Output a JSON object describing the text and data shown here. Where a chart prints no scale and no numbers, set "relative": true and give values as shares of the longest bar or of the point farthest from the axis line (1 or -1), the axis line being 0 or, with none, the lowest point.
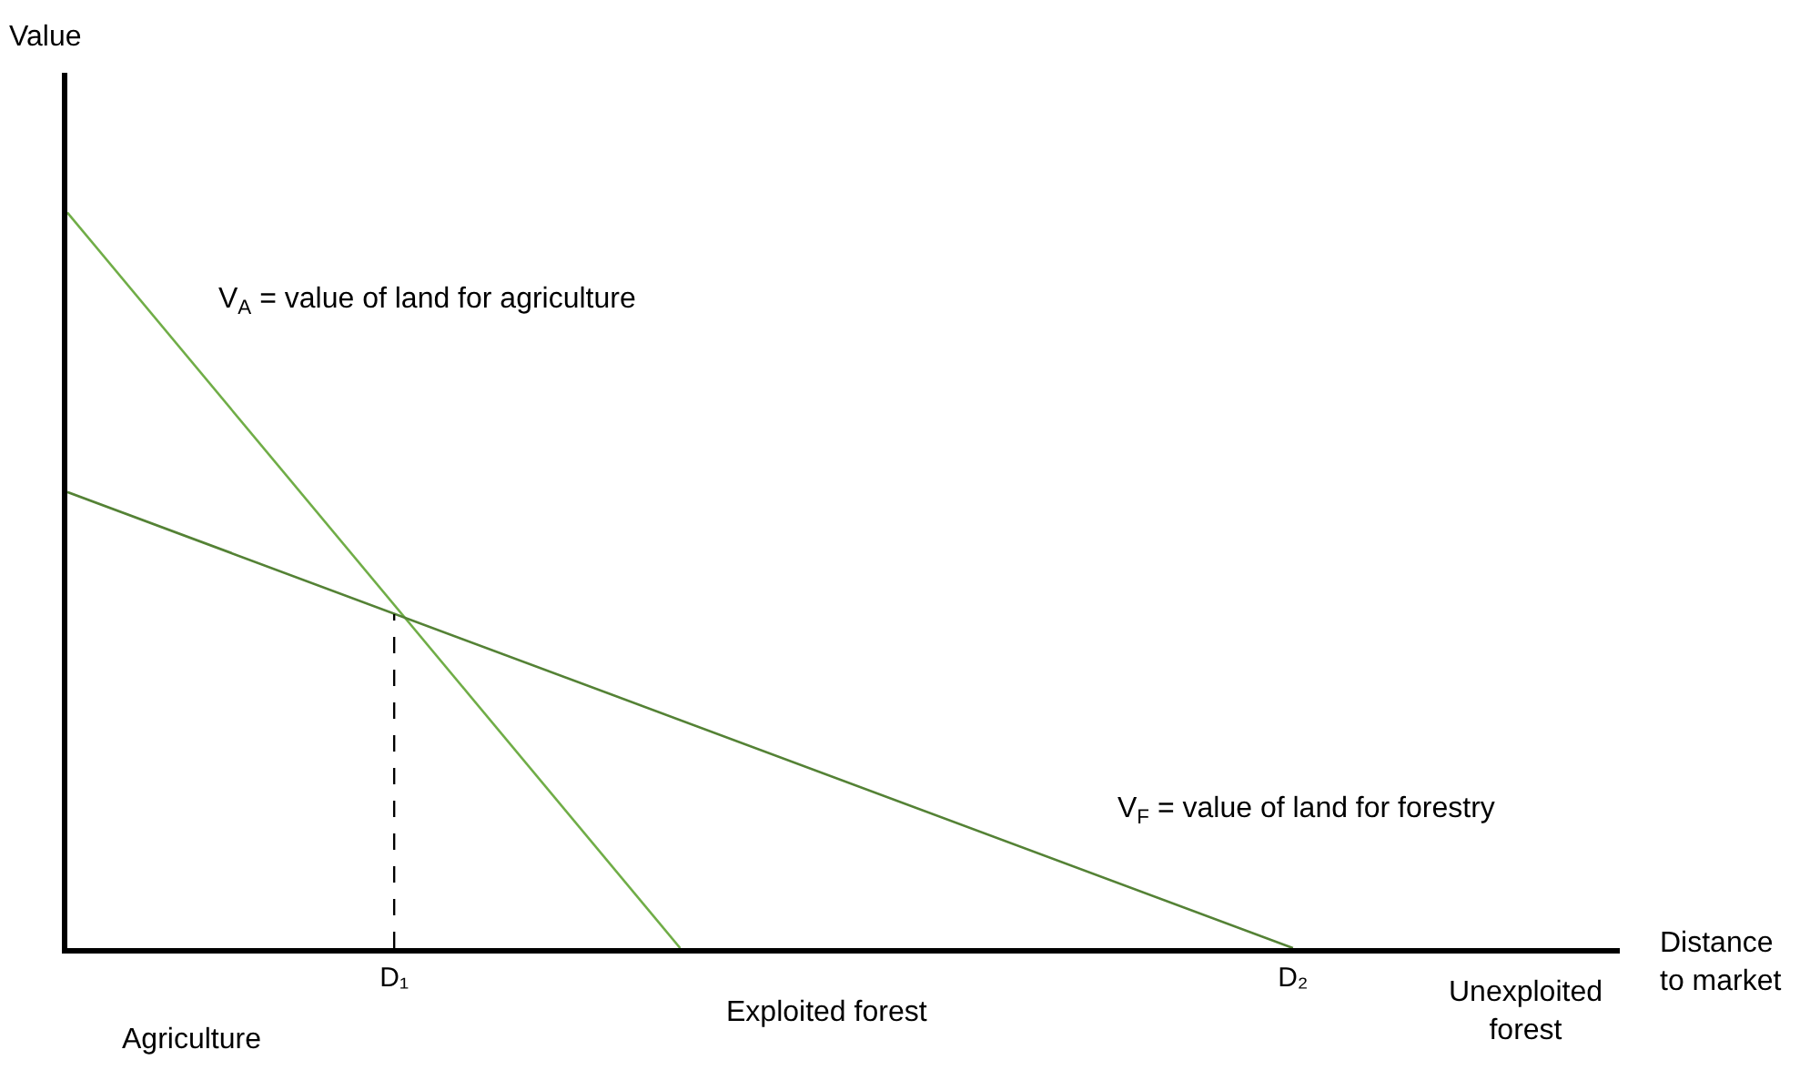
{
  "chart_data": {
    "type": "line",
    "relative": true,
    "xlabel": "Distance\nto market",
    "categories": [
      null,
      null,
      null,
      null,
      null,
      null,
      null,
      null,
      "D₁",
      null,
      null,
      null,
      null,
      null,
      null,
      null,
      null,
      null,
      null,
      null,
      null,
      null,
      null,
      null,
      null,
      null,
      null,
      null,
      null,
      null,
      "D₂",
      null,
      null,
      null,
      null,
      null,
      null,
      null,
      null
    ],
    "tick_labels": "x",
    "marker": "none",
    "series": [
      {
        "color": "#70ad47",
        "values": [
          1,
          null,
          null,
          null,
          null,
          null,
          null,
          null,
          null,
          null,
          null,
          null,
          null,
          null,
          null,
          0,
          null,
          null,
          null,
          null,
          null,
          null,
          null,
          null,
          null,
          null,
          null,
          null,
          null,
          null,
          null,
          null,
          null,
          null,
          null,
          null,
          null,
          null,
          null
        ]
      },
      {
        "color": "#548235",
        "values": [
          0.62,
          null,
          null,
          null,
          null,
          null,
          null,
          null,
          null,
          null,
          null,
          null,
          null,
          null,
          null,
          null,
          null,
          null,
          null,
          null,
          null,
          null,
          null,
          null,
          null,
          null,
          null,
          null,
          null,
          null,
          0,
          null,
          null,
          null,
          null,
          null,
          null,
          null,
          null
        ]
      },
      {
        "color": "#000000",
        "line_style": "dashed",
        "x": [
          "D₁",
          "D₁"
        ],
        "values": [
          0,
          0.454
        ]
      }
    ],
    "annotations": [
      "V$_{A}$ = value of land for agriculture",
      "V$_{F}$ = value of land for forestry",
      "Agriculture",
      "Exploited forest",
      "Unexploited\nforest",
      "Value"
    ]
  }
}
